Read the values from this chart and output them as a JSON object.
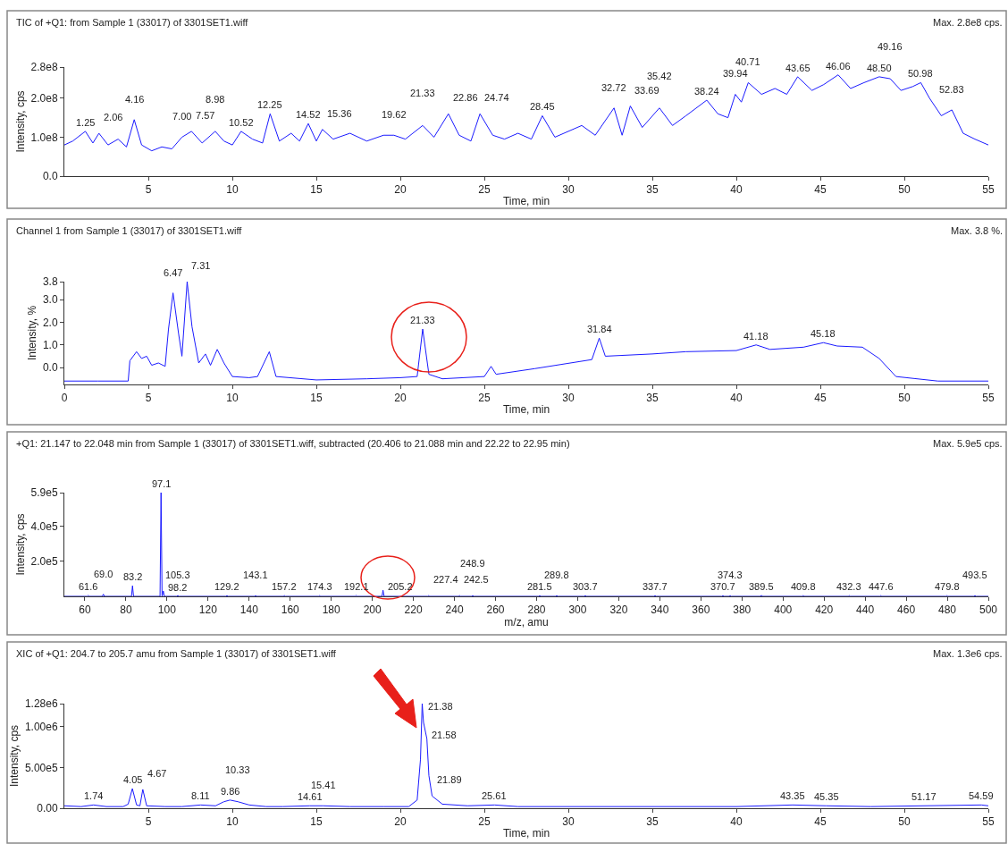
{
  "chart_data": [
    {
      "type": "line",
      "title": "TIC of +Q1: from Sample 1 (33017) of 3301SET1.wiff",
      "xlabel": "Time, min",
      "ylabel": "Intensity, cps",
      "grid": false,
      "xlim": [
        0,
        55
      ],
      "xticks": [
        5,
        10,
        15,
        20,
        25,
        30,
        35,
        40,
        45,
        50,
        55
      ],
      "ylim": [
        0,
        280000000.0
      ],
      "yticks": [
        {
          "value": 0,
          "label": "0.0"
        },
        {
          "value": 100000000.0,
          "label": "1.0e8"
        },
        {
          "value": 200000000.0,
          "label": "2.0e8"
        },
        {
          "value": 280000000.0,
          "label": "2.8e8"
        }
      ],
      "series": [
        {
          "color": "#1a1aff",
          "x": [
            0,
            0.5,
            1.25,
            1.7,
            2.06,
            2.6,
            3.2,
            3.7,
            4.16,
            4.6,
            5.2,
            5.8,
            6.4,
            7.0,
            7.57,
            8.2,
            8.98,
            9.5,
            10.0,
            10.52,
            11.2,
            11.8,
            12.25,
            12.8,
            13.5,
            14.0,
            14.52,
            15.0,
            15.36,
            16.0,
            17.0,
            18.0,
            19.0,
            19.62,
            20.3,
            21.33,
            22.0,
            22.86,
            23.5,
            24.2,
            24.74,
            25.5,
            26.2,
            27.0,
            27.8,
            28.45,
            29.2,
            30.0,
            30.8,
            31.6,
            32.72,
            33.2,
            33.69,
            34.4,
            35.42,
            36.2,
            37.0,
            38.24,
            38.9,
            39.5,
            39.94,
            40.3,
            40.71,
            41.5,
            42.3,
            43.0,
            43.65,
            44.5,
            45.2,
            46.06,
            46.8,
            47.6,
            48.5,
            49.16,
            49.8,
            50.5,
            50.98,
            51.5,
            52.2,
            52.83,
            53.5,
            54.2,
            55
          ],
          "values": [
            80000000.0,
            90000000.0,
            115000000.0,
            85000000.0,
            110000000.0,
            80000000.0,
            95000000.0,
            75000000.0,
            145000000.0,
            80000000.0,
            65000000.0,
            75000000.0,
            70000000.0,
            100000000.0,
            115000000.0,
            85000000.0,
            115000000.0,
            90000000.0,
            80000000.0,
            115000000.0,
            95000000.0,
            85000000.0,
            160000000.0,
            90000000.0,
            110000000.0,
            90000000.0,
            135000000.0,
            90000000.0,
            120000000.0,
            95000000.0,
            110000000.0,
            90000000.0,
            105000000.0,
            105000000.0,
            95000000.0,
            130000000.0,
            100000000.0,
            160000000.0,
            105000000.0,
            90000000.0,
            160000000.0,
            105000000.0,
            95000000.0,
            110000000.0,
            95000000.0,
            155000000.0,
            100000000.0,
            115000000.0,
            130000000.0,
            105000000.0,
            175000000.0,
            105000000.0,
            180000000.0,
            125000000.0,
            175000000.0,
            130000000.0,
            155000000.0,
            195000000.0,
            160000000.0,
            150000000.0,
            210000000.0,
            190000000.0,
            240000000.0,
            210000000.0,
            225000000.0,
            210000000.0,
            255000000.0,
            220000000.0,
            235000000.0,
            260000000.0,
            225000000.0,
            240000000.0,
            255000000.0,
            250000000.0,
            220000000.0,
            230000000.0,
            240000000.0,
            200000000.0,
            155000000.0,
            170000000.0,
            110000000.0,
            95000000.0,
            80000000.0
          ]
        }
      ],
      "annotations": [
        "Max. 2.8e8 cps.",
        {
          "text": "1.25",
          "x": 1.25,
          "y": 115000000.0
        },
        {
          "text": "2.06",
          "x": 2.06,
          "y": 110000000.0
        },
        {
          "text": "4.16",
          "x": 4.16,
          "y": 145000000.0
        },
        {
          "text": "7.00",
          "x": 7.0,
          "y": 100000000.0
        },
        {
          "text": "7.57",
          "x": 7.57,
          "y": 115000000.0
        },
        {
          "text": "8.98",
          "x": 8.98,
          "y": 115000000.0
        },
        {
          "text": "10.52",
          "x": 10.52,
          "y": 115000000.0
        },
        {
          "text": "12.25",
          "x": 12.25,
          "y": 160000000.0
        },
        {
          "text": "14.52",
          "x": 14.52,
          "y": 135000000.0
        },
        {
          "text": "15.36",
          "x": 15.36,
          "y": 120000000.0
        },
        {
          "text": "19.62",
          "x": 19.62,
          "y": 105000000.0
        },
        {
          "text": "21.33",
          "x": 21.33,
          "y": 130000000.0
        },
        {
          "text": "22.86",
          "x": 22.86,
          "y": 160000000.0
        },
        {
          "text": "24.74",
          "x": 24.74,
          "y": 160000000.0
        },
        {
          "text": "28.45",
          "x": 28.45,
          "y": 155000000.0
        },
        {
          "text": "32.72",
          "x": 32.72,
          "y": 175000000.0
        },
        {
          "text": "33.69",
          "x": 33.69,
          "y": 180000000.0
        },
        {
          "text": "35.42",
          "x": 35.42,
          "y": 175000000.0
        },
        {
          "text": "38.24",
          "x": 38.24,
          "y": 195000000.0
        },
        {
          "text": "39.94",
          "x": 39.94,
          "y": 210000000.0
        },
        {
          "text": "40.71",
          "x": 40.71,
          "y": 240000000.0
        },
        {
          "text": "43.65",
          "x": 43.65,
          "y": 255000000.0
        },
        {
          "text": "46.06",
          "x": 46.06,
          "y": 260000000.0
        },
        {
          "text": "48.50",
          "x": 48.5,
          "y": 255000000.0
        },
        {
          "text": "49.16",
          "x": 49.16,
          "y": 250000000.0
        },
        {
          "text": "50.98",
          "x": 50.98,
          "y": 240000000.0
        },
        {
          "text": "52.83",
          "x": 52.83,
          "y": 170000000.0
        }
      ]
    },
    {
      "type": "line",
      "title": "Channel 1 from Sample 1 (33017) of 3301SET1.wiff",
      "xlabel": "Time, min",
      "ylabel": "Intensity, %",
      "grid": false,
      "xlim": [
        0,
        55
      ],
      "xticks": [
        0,
        5,
        10,
        15,
        20,
        25,
        30,
        35,
        40,
        45,
        50,
        55
      ],
      "ylim": [
        -0.75,
        3.8
      ],
      "yticks": [
        {
          "value": 0,
          "label": "0.0"
        },
        {
          "value": 1.0,
          "label": "1.0"
        },
        {
          "value": 2.0,
          "label": "2.0"
        },
        {
          "value": 3.0,
          "label": "3.0"
        },
        3.8
      ],
      "series": [
        {
          "color": "#1a1aff",
          "x": [
            0,
            2,
            3.8,
            3.9,
            4.3,
            4.6,
            4.9,
            5.2,
            5.6,
            6.0,
            6.2,
            6.47,
            6.8,
            7.0,
            7.31,
            7.6,
            8.0,
            8.4,
            8.7,
            9.1,
            9.5,
            10,
            11,
            11.5,
            12.2,
            12.6,
            15,
            18,
            20,
            21.0,
            21.33,
            21.7,
            22.5,
            25,
            25.4,
            25.7,
            28,
            31.4,
            31.84,
            32.2,
            35,
            37,
            40,
            41.18,
            42,
            44,
            45.18,
            46,
            47.5,
            48.5,
            49.5,
            52,
            55
          ],
          "values": [
            -0.6,
            -0.6,
            -0.6,
            0.3,
            0.7,
            0.4,
            0.5,
            0.1,
            0.2,
            0.05,
            1.7,
            3.3,
            1.5,
            0.5,
            3.8,
            1.8,
            0.2,
            0.6,
            0.1,
            0.8,
            0.2,
            -0.4,
            -0.45,
            -0.4,
            0.7,
            -0.4,
            -0.55,
            -0.5,
            -0.45,
            -0.4,
            1.7,
            -0.3,
            -0.5,
            -0.4,
            0.05,
            -0.3,
            -0.05,
            0.35,
            1.3,
            0.5,
            0.6,
            0.7,
            0.75,
            1.0,
            0.8,
            0.9,
            1.1,
            0.95,
            0.9,
            0.4,
            -0.4,
            -0.6,
            -0.6
          ]
        }
      ],
      "annotations": [
        "Max. 3.8 %.",
        {
          "text": "6.47",
          "x": 6.47,
          "y": 3.3
        },
        {
          "text": "7.31",
          "x": 7.31,
          "y": 3.8
        },
        {
          "text": "21.33",
          "x": 21.33,
          "y": 1.7
        },
        {
          "text": "31.84",
          "x": 31.84,
          "y": 1.3
        },
        {
          "text": "41.18",
          "x": 41.18,
          "y": 1.0
        },
        {
          "text": "45.18",
          "x": 45.18,
          "y": 1.1
        }
      ]
    },
    {
      "type": "line",
      "title": "+Q1: 21.147 to 22.048 min from Sample 1 (33017) of 3301SET1.wiff, subtracted (20.406 to 21.088 min and 22.22 to 22.95 min)",
      "xlabel": "m/z, amu",
      "ylabel": "Intensity, cps",
      "grid": false,
      "xlim": [
        50,
        500
      ],
      "xticks": [
        60,
        80,
        100,
        120,
        140,
        160,
        180,
        200,
        220,
        240,
        260,
        280,
        300,
        320,
        340,
        360,
        380,
        400,
        420,
        440,
        460,
        480,
        500
      ],
      "ylim": [
        0,
        590000.0
      ],
      "yticks": [
        {
          "value": 200000.0,
          "label": "2.0e5"
        },
        {
          "value": 400000.0,
          "label": "4.0e5"
        },
        {
          "value": 590000.0,
          "label": "5.9e5"
        }
      ],
      "series": [
        {
          "color": "#1a1aff",
          "x": [
            50,
            61.1,
            61.6,
            62.1,
            68.5,
            69.0,
            69.5,
            82.7,
            83.2,
            83.7,
            96.6,
            97.1,
            97.6,
            98.2,
            98.7,
            104.8,
            105.3,
            105.8,
            128.7,
            129.2,
            129.7,
            142.6,
            143.1,
            143.6,
            156.7,
            157.2,
            157.7,
            173.8,
            174.3,
            174.8,
            191.6,
            192.1,
            192.6,
            204.7,
            205.2,
            205.7,
            226.9,
            227.4,
            227.9,
            242.0,
            242.5,
            243.0,
            248.4,
            248.9,
            249.4,
            281.0,
            281.5,
            282.0,
            289.3,
            289.8,
            290.3,
            303.2,
            303.7,
            304.2,
            337.2,
            337.7,
            338.2,
            370.2,
            370.7,
            371.2,
            373.8,
            374.3,
            374.8,
            389.0,
            389.5,
            390.0,
            409.3,
            409.8,
            410.3,
            431.8,
            432.3,
            432.8,
            447.1,
            447.6,
            448.1,
            479.3,
            479.8,
            480.3,
            493.0,
            493.5,
            494.0,
            500
          ],
          "values": [
            0,
            0,
            5000,
            0,
            0,
            12000,
            0,
            0,
            60000,
            0,
            0,
            590000,
            0,
            30000,
            0,
            0,
            5000,
            0,
            0,
            4000,
            0,
            0,
            4000,
            0,
            0,
            4000,
            0,
            0,
            4000,
            0,
            0,
            5000,
            0,
            0,
            35000,
            0,
            0,
            4000,
            0,
            0,
            4000,
            0,
            0,
            4000,
            0,
            0,
            4000,
            0,
            0,
            4000,
            0,
            0,
            4000,
            0,
            0,
            4000,
            0,
            0,
            4000,
            0,
            0,
            4000,
            0,
            0,
            6000,
            0,
            0,
            4000,
            0,
            0,
            4000,
            0,
            0,
            4000,
            0,
            0,
            4000,
            0,
            0,
            4000,
            0,
            0
          ]
        }
      ],
      "annotations": [
        "Max. 5.9e5 cps.",
        {
          "text": "61.6",
          "x": 61.6,
          "y": 5000
        },
        {
          "text": "69.0",
          "x": 69.0,
          "y": 12000
        },
        {
          "text": "83.2",
          "x": 83.2,
          "y": 60000
        },
        {
          "text": "97.1",
          "x": 97.1,
          "y": 590000
        },
        {
          "text": "98.2",
          "x": 98.2,
          "y": 30000
        },
        {
          "text": "105.3",
          "x": 105.3,
          "y": 5000
        },
        {
          "text": "129.2",
          "x": 129.2,
          "y": 4000
        },
        {
          "text": "143.1",
          "x": 143.1,
          "y": 4000
        },
        {
          "text": "157.2",
          "x": 157.2,
          "y": 4000
        },
        {
          "text": "174.3",
          "x": 174.3,
          "y": 4000
        },
        {
          "text": "192.1",
          "x": 192.1,
          "y": 5000
        },
        {
          "text": "205.2",
          "x": 205.2,
          "y": 35000
        },
        {
          "text": "227.4",
          "x": 227.4,
          "y": 4000
        },
        {
          "text": "242.5",
          "x": 242.5,
          "y": 4000
        },
        {
          "text": "248.9",
          "x": 248.9,
          "y": 4000
        },
        {
          "text": "281.5",
          "x": 281.5,
          "y": 4000
        },
        {
          "text": "289.8",
          "x": 289.8,
          "y": 4000
        },
        {
          "text": "303.7",
          "x": 303.7,
          "y": 4000
        },
        {
          "text": "337.7",
          "x": 337.7,
          "y": 4000
        },
        {
          "text": "370.7",
          "x": 370.7,
          "y": 4000
        },
        {
          "text": "374.3",
          "x": 374.3,
          "y": 4000
        },
        {
          "text": "389.5",
          "x": 389.5,
          "y": 6000
        },
        {
          "text": "409.8",
          "x": 409.8,
          "y": 4000
        },
        {
          "text": "432.3",
          "x": 432.3,
          "y": 4000
        },
        {
          "text": "447.6",
          "x": 447.6,
          "y": 4000
        },
        {
          "text": "479.8",
          "x": 479.8,
          "y": 4000
        },
        {
          "text": "493.5",
          "x": 493.5,
          "y": 4000
        }
      ]
    },
    {
      "type": "line",
      "title": "XIC of +Q1: 204.7 to 205.7 amu from Sample 1 (33017) of 3301SET1.wiff",
      "xlabel": "Time, min",
      "ylabel": "Intensity, cps",
      "grid": false,
      "xlim": [
        0,
        55
      ],
      "xticks": [
        5,
        10,
        15,
        20,
        25,
        30,
        35,
        40,
        45,
        50,
        55
      ],
      "ylim": [
        0,
        1280000.0
      ],
      "yticks": [
        {
          "value": 0,
          "label": "0.00"
        },
        {
          "value": 500000.0,
          "label": "5.00e5"
        },
        {
          "value": 1000000.0,
          "label": "1.00e6"
        },
        {
          "value": 1280000.0,
          "label": "1.28e6"
        }
      ],
      "series": [
        {
          "color": "#1a1aff",
          "x": [
            0,
            1,
            1.74,
            2.5,
            3.5,
            3.8,
            4.05,
            4.3,
            4.5,
            4.67,
            4.9,
            6,
            7,
            8.11,
            9,
            9.5,
            9.86,
            10.33,
            11,
            12,
            13,
            14.61,
            15.41,
            17,
            19,
            20.5,
            21.0,
            21.2,
            21.3,
            21.38,
            21.58,
            21.7,
            21.89,
            22.5,
            24,
            25.61,
            27,
            30,
            35,
            40,
            43.35,
            45.35,
            48,
            51.17,
            54.59,
            55
          ],
          "values": [
            30000,
            20000,
            40000,
            20000,
            20000,
            50000,
            240000,
            40000,
            30000,
            230000,
            30000,
            20000,
            20000,
            40000,
            30000,
            80000,
            100000,
            80000,
            40000,
            20000,
            20000,
            30000,
            30000,
            20000,
            20000,
            20000,
            100000,
            600000,
            1280000,
            1050000,
            850000,
            400000,
            150000,
            50000,
            30000,
            40000,
            20000,
            20000,
            20000,
            20000,
            40000,
            30000,
            20000,
            30000,
            40000,
            30000
          ]
        }
      ],
      "annotations": [
        "Max. 1.3e6 cps.",
        {
          "text": "1.74",
          "x": 1.74,
          "y": 40000
        },
        {
          "text": "4.05",
          "x": 4.05,
          "y": 240000
        },
        {
          "text": "4.67",
          "x": 4.67,
          "y": 230000
        },
        {
          "text": "8.11",
          "x": 8.11,
          "y": 40000
        },
        {
          "text": "9.86",
          "x": 9.86,
          "y": 100000
        },
        {
          "text": "10.33",
          "x": 10.33,
          "y": 80000
        },
        {
          "text": "14.61",
          "x": 14.61,
          "y": 30000
        },
        {
          "text": "15.41",
          "x": 15.41,
          "y": 30000
        },
        {
          "text": "21.38",
          "x": 21.38,
          "y": 1050000
        },
        {
          "text": "21.58",
          "x": 21.58,
          "y": 850000
        },
        {
          "text": "21.89",
          "x": 21.89,
          "y": 150000
        },
        {
          "text": "25.61",
          "x": 25.61,
          "y": 40000
        },
        {
          "text": "43.35",
          "x": 43.35,
          "y": 40000
        },
        {
          "text": "45.35",
          "x": 45.35,
          "y": 30000
        },
        {
          "text": "51.17",
          "x": 51.17,
          "y": 30000
        },
        {
          "text": "54.59",
          "x": 54.59,
          "y": 40000
        }
      ]
    }
  ]
}
